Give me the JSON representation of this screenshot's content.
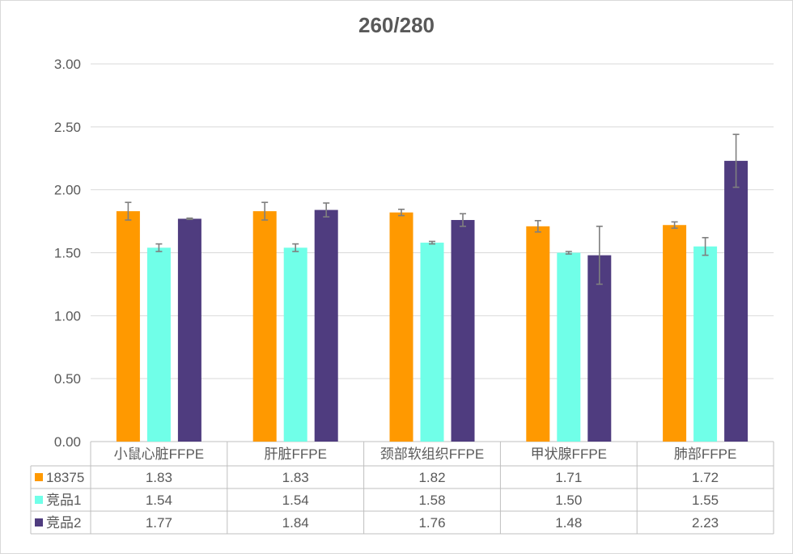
{
  "chart_data": {
    "type": "bar",
    "title": "260/280",
    "xlabel": "",
    "ylabel": "",
    "ylim": [
      0,
      3
    ],
    "yticks": [
      "0.00",
      "0.50",
      "1.00",
      "1.50",
      "2.00",
      "2.50",
      "3.00"
    ],
    "grid": true,
    "legend": "data-table-left",
    "categories": [
      "小鼠心脏FFPE",
      "肝脏FFPE",
      "颈部软组织FFPE",
      "甲状腺FFPE",
      "肺部FFPE"
    ],
    "series": [
      {
        "name": "18375",
        "color": "#ff9900",
        "values": [
          1.83,
          1.83,
          1.82,
          1.71,
          1.72
        ],
        "value_labels": [
          "1.83",
          "1.83",
          "1.82",
          "1.71",
          "1.72"
        ],
        "error": [
          0.07,
          0.07,
          0.025,
          0.045,
          0.025
        ]
      },
      {
        "name": "竞品1",
        "color": "#70ffe8",
        "values": [
          1.54,
          1.54,
          1.58,
          1.5,
          1.55
        ],
        "value_labels": [
          "1.54",
          "1.54",
          "1.58",
          "1.50",
          "1.55"
        ],
        "error": [
          0.03,
          0.03,
          0.01,
          0.01,
          0.07
        ]
      },
      {
        "name": "竞品2",
        "color": "#4f3c7f",
        "values": [
          1.77,
          1.84,
          1.76,
          1.48,
          2.23
        ],
        "value_labels": [
          "1.77",
          "1.84",
          "1.76",
          "1.48",
          "2.23"
        ],
        "error": [
          0.005,
          0.055,
          0.05,
          0.23,
          0.21
        ]
      }
    ]
  }
}
